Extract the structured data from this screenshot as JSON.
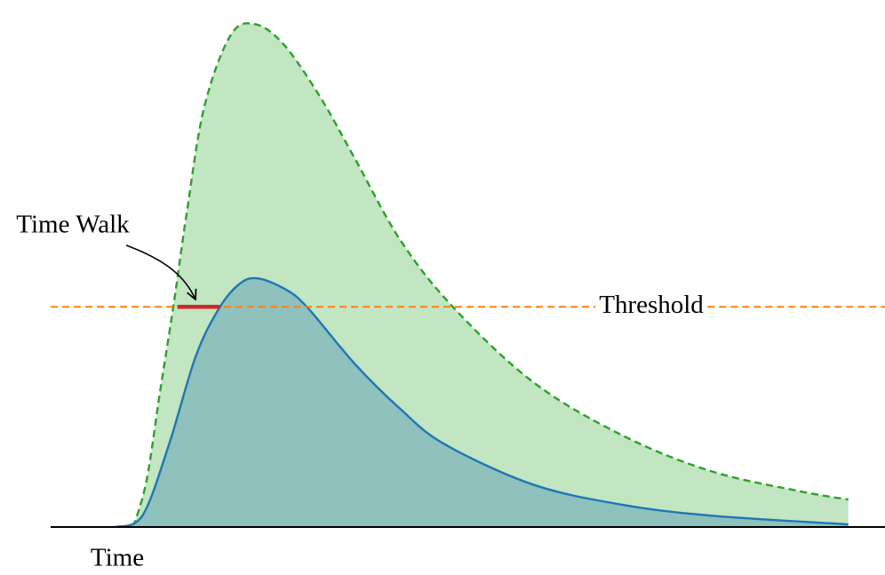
{
  "chart_data": {
    "type": "area",
    "xlabel": "Time",
    "xlim": [
      0,
      100
    ],
    "ylim": [
      0,
      100
    ],
    "series": [
      {
        "color": "#2ca02c",
        "fill": "#c2e5c2",
        "dashed": true,
        "x": [
          9.9,
          11.5,
          13.1,
          14.7,
          16.3,
          18.4,
          21.6,
          24.6,
          28,
          32.3,
          36.5,
          41.9,
          48.2,
          57.8,
          68.5,
          79.1,
          89.8,
          95.6
        ],
        "values": [
          0,
          9,
          26,
          42.5,
          60.5,
          81,
          95,
          97,
          93,
          83,
          71,
          55.4,
          42.5,
          28,
          17.7,
          10.8,
          6.9,
          5.3
        ]
      },
      {
        "color": "#1f77b4",
        "fill": "#8fc1bd",
        "dashed": false,
        "x": [
          7.8,
          11,
          14.2,
          17.4,
          20.3,
          22.7,
          24.8,
          28,
          30.7,
          36.5,
          41.9,
          47.2,
          57.8,
          68.5,
          79.1,
          95.6
        ],
        "values": [
          0,
          2.2,
          16,
          33,
          42.5,
          47,
          48,
          46,
          42.5,
          31.4,
          22.8,
          16,
          8.2,
          4.3,
          2.2,
          0.5
        ]
      }
    ],
    "threshold": {
      "label": "Threshold",
      "value": 42.5,
      "color": "#ff7f0e"
    },
    "time_walk": {
      "label": "Time Walk",
      "x": [
        15.2,
        20.3
      ],
      "color": "#d62728"
    }
  }
}
